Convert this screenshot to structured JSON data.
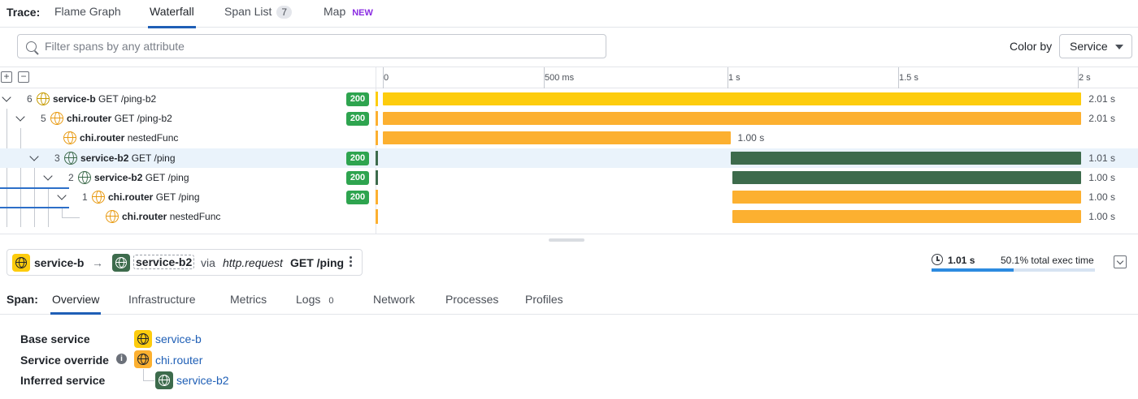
{
  "trace_tabs": {
    "label": "Trace:",
    "tabs": [
      {
        "label": "Flame Graph"
      },
      {
        "label": "Waterfall"
      },
      {
        "label": "Span List",
        "count": "7"
      },
      {
        "label": "Map",
        "badge": "NEW"
      }
    ],
    "active": "Waterfall"
  },
  "search": {
    "placeholder": "Filter spans by any attribute",
    "value": ""
  },
  "color_by": {
    "label": "Color by",
    "value": "Service"
  },
  "timeline": {
    "ticks": [
      "0",
      "500 ms",
      "1 s",
      "1.5 s",
      "2 s"
    ]
  },
  "colors": {
    "service_b": "#fdcc0d",
    "chi_router": "#fcb030",
    "service_b2": "#3d6b4c",
    "status_ok": "#2ea44f",
    "accent": "#1f5fb6"
  },
  "spans": [
    {
      "num": "6",
      "service": "service-b",
      "resource": "GET /ping-b2",
      "status": "200",
      "duration": "2.01 s",
      "start_ms": 0,
      "duration_ms": 2010
    },
    {
      "num": "5",
      "service": "chi.router",
      "resource": "GET /ping-b2",
      "status": "200",
      "duration": "2.01 s",
      "start_ms": 0,
      "duration_ms": 2010
    },
    {
      "num": "",
      "service": "chi.router",
      "resource": "nestedFunc",
      "status": "",
      "duration": "1.00 s",
      "start_ms": 0,
      "duration_ms": 1000
    },
    {
      "num": "3",
      "service": "service-b2",
      "resource": "GET /ping",
      "status": "200",
      "duration": "1.01 s",
      "start_ms": 1000,
      "duration_ms": 1010
    },
    {
      "num": "2",
      "service": "service-b2",
      "resource": "GET /ping",
      "status": "200",
      "duration": "1.00 s",
      "start_ms": 1005,
      "duration_ms": 1005
    },
    {
      "num": "1",
      "service": "chi.router",
      "resource": "GET /ping",
      "status": "200",
      "duration": "1.00 s",
      "start_ms": 1005,
      "duration_ms": 1005
    },
    {
      "num": "",
      "service": "chi.router",
      "resource": "nestedFunc",
      "status": "",
      "duration": "1.00 s",
      "start_ms": 1005,
      "duration_ms": 1005
    }
  ],
  "summary": {
    "from_service": "service-b",
    "to_service": "service-b2",
    "via": "via",
    "protocol": "http.request",
    "resource": "GET /ping",
    "duration": "1.01 s",
    "exec_pct_text": "50.1% total exec time",
    "exec_fraction": 0.501
  },
  "span_tabs": {
    "label": "Span:",
    "tabs": [
      "Overview",
      "Infrastructure",
      "Metrics",
      "Logs",
      "Network",
      "Processes",
      "Profiles"
    ],
    "logs_count": "0",
    "active": "Overview"
  },
  "details": {
    "base_service_label": "Base service",
    "base_service": "service-b",
    "override_label": "Service override",
    "override_service": "chi.router",
    "inferred_label": "Inferred service",
    "inferred_service": "service-b2"
  }
}
